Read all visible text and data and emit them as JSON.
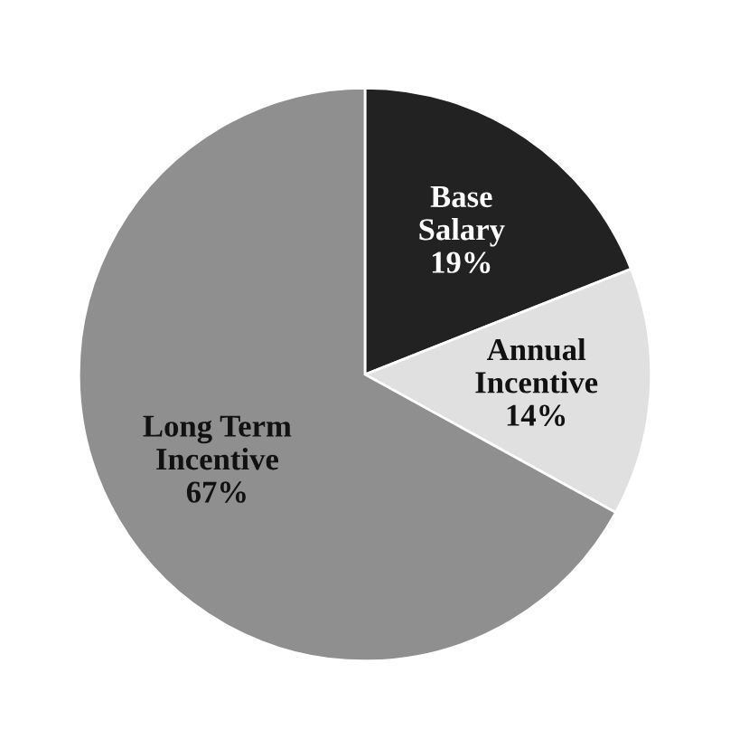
{
  "chart_data": {
    "type": "pie",
    "categories": [
      "Base Salary",
      "Annual Incentive",
      "Long Term Incentive"
    ],
    "values": [
      19,
      14,
      67
    ],
    "value_labels": [
      "19%",
      "14%",
      "67%"
    ],
    "colors": [
      "#222222",
      "#e0e0e0",
      "#8f8f8f"
    ],
    "legend": false
  }
}
